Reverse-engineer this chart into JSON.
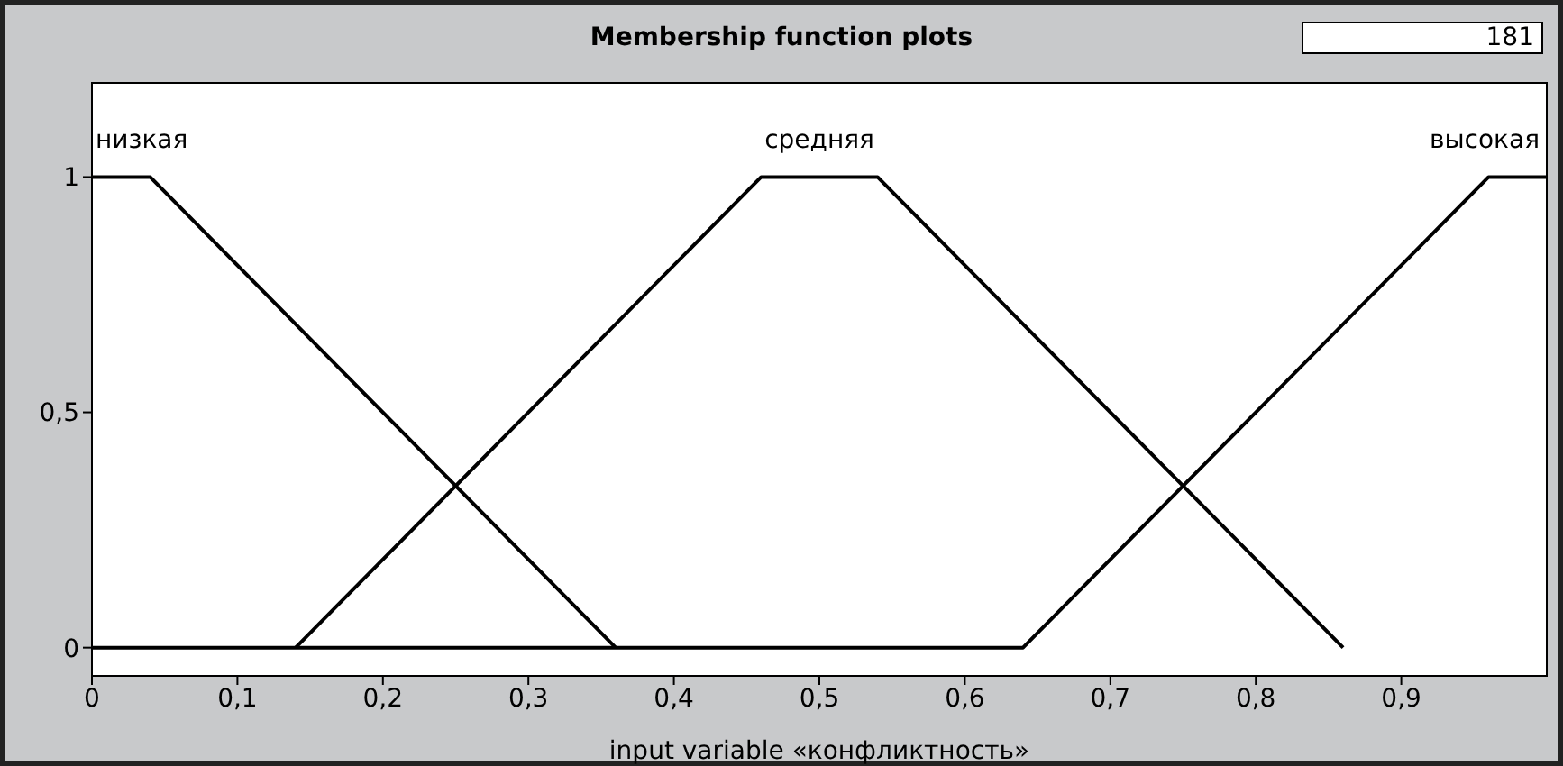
{
  "chart_data": {
    "type": "line",
    "title": "Membership function plots",
    "xlabel": "input variable «конфликтность»",
    "annotations": [
      "181"
    ],
    "xlim": [
      0,
      1
    ],
    "ylim": [
      -0.06,
      1.2
    ],
    "xticks": [
      0,
      {
        "value": 0.1,
        "label": "0,1"
      },
      {
        "value": 0.2,
        "label": "0,2"
      },
      {
        "value": 0.3,
        "label": "0,3"
      },
      {
        "value": 0.4,
        "label": "0,4"
      },
      {
        "value": 0.5,
        "label": "0,5"
      },
      {
        "value": 0.6,
        "label": "0,6"
      },
      {
        "value": 0.7,
        "label": "0,7"
      },
      {
        "value": 0.8,
        "label": "0,8"
      },
      {
        "value": 0.9,
        "label": "0,9"
      }
    ],
    "yticks": [
      0,
      {
        "value": 0.5,
        "label": "0,5"
      },
      1
    ],
    "legend": false,
    "marker": "none",
    "line_style": "solid",
    "series": [
      {
        "name": "низкая",
        "color": "#000000",
        "x": [
          0,
          0.04,
          0.36
        ],
        "values": [
          1,
          1,
          0
        ]
      },
      {
        "name": "средняя",
        "color": "#000000",
        "x": [
          0.14,
          0.46,
          0.54,
          0.86
        ],
        "values": [
          0,
          1,
          1,
          0
        ]
      },
      {
        "name": "высокая",
        "color": "#000000",
        "x": [
          0,
          0.64,
          0.96,
          1
        ],
        "values": [
          0,
          0,
          1,
          1
        ]
      }
    ]
  }
}
